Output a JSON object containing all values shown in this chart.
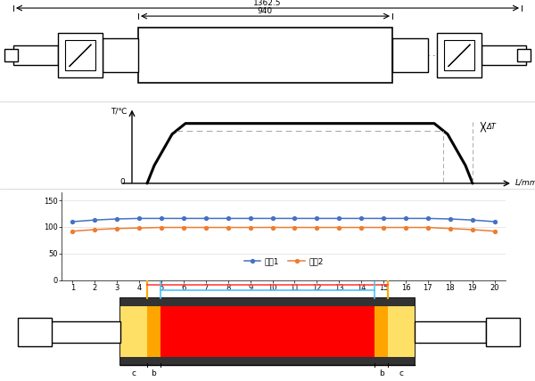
{
  "fig_width": 6.0,
  "fig_height": 4.28,
  "dpi": 100,
  "bg_color": "#ffffff",
  "dim_total": "1362.5",
  "dim_body": "940",
  "series1": [
    110,
    113,
    115,
    116,
    116,
    116,
    116,
    116,
    116,
    116,
    116,
    116,
    116,
    116,
    116,
    116,
    116,
    115,
    113,
    110
  ],
  "series2": [
    92,
    95,
    97,
    98,
    99,
    99,
    99,
    99,
    99,
    99,
    99,
    99,
    99,
    99,
    99,
    99,
    99,
    97,
    95,
    92
  ],
  "x_labels": [
    1,
    2,
    3,
    4,
    5,
    6,
    7,
    8,
    9,
    10,
    11,
    12,
    13,
    14,
    15,
    16,
    17,
    18,
    19,
    20
  ],
  "color_series1": "#4472C4",
  "color_series2": "#ED7D31",
  "legend1": "系儗1",
  "legend2": "系儗2",
  "color_red": "#FF0000",
  "color_yellow_light": "#FFE066",
  "color_yellow_dark": "#FFA500",
  "color_blue_line": "#4FC3F7",
  "color_red_line": "#FF4444",
  "color_black": "#000000",
  "color_darkgray": "#333333",
  "color_midgray": "#888888"
}
